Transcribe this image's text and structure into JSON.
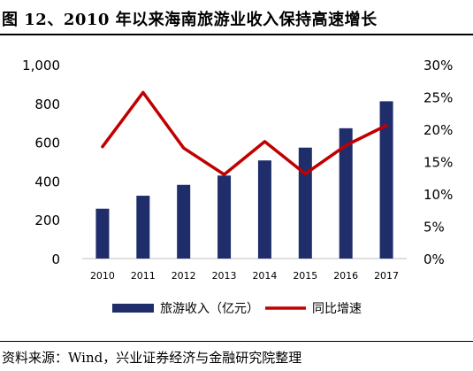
{
  "header": {
    "title": "图 12、2010 年以来海南旅游业收入保持高速增长"
  },
  "footer": {
    "source": "资料来源：Wind，兴业证券经济与金融研究院整理"
  },
  "colors": {
    "bar": "#1f2d6b",
    "line": "#c00000"
  },
  "chart_data": {
    "type": "bar",
    "categories": [
      "2010",
      "2011",
      "2012",
      "2013",
      "2014",
      "2015",
      "2016",
      "2017"
    ],
    "series": [
      {
        "name": "旅游收入（亿元）",
        "type": "bar",
        "axis": "left",
        "values": [
          257,
          324,
          380,
          428,
          506,
          572,
          672,
          811
        ]
      },
      {
        "name": "同比增速",
        "type": "line",
        "axis": "right",
        "values": [
          0.173,
          0.257,
          0.171,
          0.13,
          0.181,
          0.131,
          0.175,
          0.206
        ]
      }
    ],
    "left_axis": {
      "min": 0,
      "max": 1000,
      "ticks": [
        "0",
        "200",
        "400",
        "600",
        "800",
        "1,000"
      ]
    },
    "right_axis": {
      "min": 0,
      "max": 0.3,
      "ticks": [
        "0%",
        "5%",
        "10%",
        "15%",
        "20%",
        "25%",
        "30%"
      ]
    },
    "legend": {
      "position": "bottom",
      "items": [
        "旅游收入（亿元）",
        "同比增速"
      ]
    },
    "grid": false
  }
}
